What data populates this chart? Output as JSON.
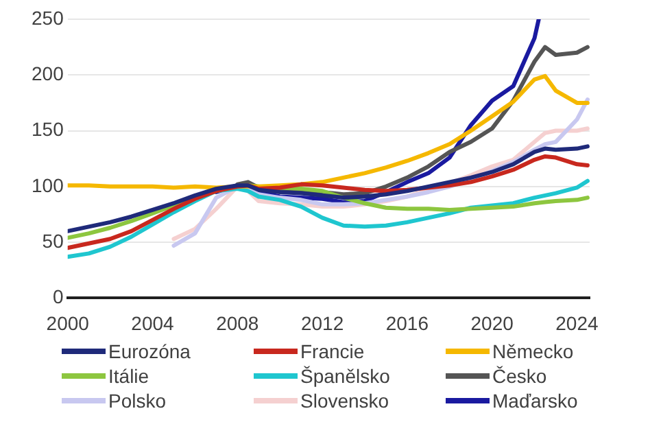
{
  "chart_data": {
    "type": "line",
    "x": [
      2000,
      2001,
      2002,
      2003,
      2004,
      2005,
      2006,
      2007,
      2008,
      2008.5,
      2009,
      2010,
      2011,
      2012,
      2013,
      2014,
      2015,
      2016,
      2017,
      2018,
      2019,
      2020,
      2021,
      2022,
      2022.5,
      2023,
      2024,
      2024.5
    ],
    "series": [
      {
        "name": "Eurozóna",
        "color": "#1f2a7a",
        "values": [
          60,
          64,
          68,
          73,
          79,
          85,
          92,
          98,
          101,
          101,
          97,
          95,
          94,
          92,
          90,
          91,
          93,
          96,
          100,
          104,
          108,
          113,
          120,
          131,
          134,
          133,
          134,
          136
        ]
      },
      {
        "name": "Francie",
        "color": "#c8281e",
        "values": [
          45,
          49,
          53,
          60,
          70,
          80,
          89,
          96,
          100,
          101,
          98,
          99,
          102,
          101,
          99,
          97,
          96,
          97,
          99,
          101,
          104,
          109,
          115,
          124,
          127,
          126,
          120,
          119
        ]
      },
      {
        "name": "Německo",
        "color": "#f5b800",
        "values": [
          101,
          101,
          100,
          100,
          100,
          99,
          100,
          99,
          100,
          100,
          100,
          101,
          102,
          104,
          108,
          112,
          117,
          123,
          130,
          138,
          150,
          163,
          176,
          196,
          199,
          186,
          175,
          175
        ]
      },
      {
        "name": "Itálie",
        "color": "#8dc63f",
        "values": [
          54,
          58,
          63,
          69,
          76,
          83,
          90,
          96,
          100,
          101,
          100,
          99,
          98,
          96,
          90,
          85,
          81,
          80,
          80,
          79,
          80,
          81,
          82,
          85,
          86,
          87,
          88,
          90
        ]
      },
      {
        "name": "Španělsko",
        "color": "#1fc6cf",
        "values": [
          37,
          40,
          46,
          55,
          66,
          77,
          87,
          96,
          98,
          96,
          91,
          88,
          82,
          72,
          65,
          64,
          65,
          68,
          72,
          76,
          81,
          83,
          85,
          90,
          92,
          94,
          99,
          105
        ]
      },
      {
        "name": "Česko",
        "color": "#555555",
        "values": [
          null,
          null,
          null,
          null,
          null,
          null,
          null,
          null,
          102,
          104,
          99,
          96,
          96,
          95,
          93,
          94,
          100,
          108,
          118,
          131,
          140,
          152,
          177,
          212,
          225,
          218,
          220,
          225
        ]
      },
      {
        "name": "Polsko",
        "color": "#c8c8f0",
        "values": [
          null,
          null,
          null,
          null,
          null,
          47,
          58,
          90,
          100,
          98,
          93,
          90,
          88,
          84,
          84,
          85,
          88,
          91,
          95,
          100,
          106,
          114,
          122,
          133,
          138,
          140,
          160,
          178
        ]
      },
      {
        "name": "Slovensko",
        "color": "#f5d0d0",
        "values": [
          null,
          null,
          null,
          null,
          null,
          53,
          62,
          80,
          100,
          96,
          87,
          85,
          84,
          82,
          82,
          84,
          87,
          91,
          97,
          103,
          110,
          118,
          124,
          140,
          148,
          150,
          150,
          152
        ]
      },
      {
        "name": "Maďarsko",
        "color": "#1a1aa0",
        "x": [
          2007,
          2008,
          2008.5,
          2009,
          2010,
          2011,
          2012,
          2013,
          2014,
          2015,
          2016,
          2017,
          2018,
          2019,
          2020,
          2021,
          2022,
          2022.2
        ],
        "values": [
          95,
          101,
          100,
          95,
          91,
          90,
          89,
          86,
          87,
          95,
          104,
          112,
          126,
          155,
          177,
          190,
          233,
          250
        ]
      }
    ],
    "xlim": [
      2000,
      2024.6
    ],
    "xticks": [
      2000,
      2004,
      2008,
      2012,
      2016,
      2020,
      2024
    ],
    "ylim": [
      0,
      250
    ],
    "yticks": [
      0,
      50,
      100,
      150,
      200,
      250
    ],
    "grid": "y",
    "legend": "bottom",
    "marker": "none",
    "line_style": "solid"
  }
}
